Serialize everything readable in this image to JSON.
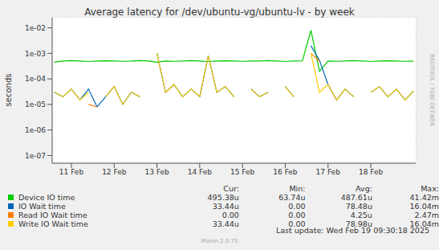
{
  "chart_data": {
    "type": "line",
    "title": "Average latency for /dev/ubuntu-vg/ubuntu-lv - by week",
    "y_label": "seconds",
    "side_text": "RRDTOOL / TOBI OETIKER",
    "footer": "Last update: Wed Feb 19 09:30:18 2025",
    "credit": "Munin 2.0.75",
    "log": "y",
    "grid": true,
    "xlim": [
      10.55,
      19.05
    ],
    "xticks": [
      {
        "value": 11,
        "label": "11 Feb"
      },
      {
        "value": 12,
        "label": "12 Feb"
      },
      {
        "value": 13,
        "label": "13 Feb"
      },
      {
        "value": 14,
        "label": "14 Feb"
      },
      {
        "value": 15,
        "label": "15 Feb"
      },
      {
        "value": 16,
        "label": "16 Feb"
      },
      {
        "value": 17,
        "label": "17 Feb"
      },
      {
        "value": 18,
        "label": "18 Feb"
      }
    ],
    "ylim": [
      5e-08,
      0.025
    ],
    "yticks": [
      {
        "value": 1e-07,
        "label": "1e-07"
      },
      {
        "value": 1e-06,
        "label": "1e-06"
      },
      {
        "value": 1e-05,
        "label": "1e-05"
      },
      {
        "value": 0.0001,
        "label": "1e-04"
      },
      {
        "value": 0.001,
        "label": "1e-03"
      },
      {
        "value": 0.01,
        "label": "1e-02"
      }
    ],
    "summary_headers": [
      "Cur:",
      "Min:",
      "Avg:",
      "Max:"
    ],
    "x": [
      10.6,
      10.8,
      11.0,
      11.2,
      11.4,
      11.6,
      11.8,
      12.0,
      12.2,
      12.4,
      12.6,
      12.8,
      13.0,
      13.2,
      13.4,
      13.6,
      13.8,
      14.0,
      14.2,
      14.4,
      14.6,
      14.8,
      15.0,
      15.2,
      15.4,
      15.6,
      15.8,
      16.0,
      16.2,
      16.4,
      16.6,
      16.8,
      17.0,
      17.2,
      17.4,
      17.6,
      17.8,
      18.0,
      18.2,
      18.4,
      18.6,
      18.8,
      19.0
    ],
    "series": [
      {
        "name": "Device IO time",
        "color": "#00cc00",
        "summary": [
          "495.38u",
          "63.74u",
          "487.61u",
          "41.42m"
        ],
        "values": [
          0.00045,
          0.0005,
          0.00052,
          0.0005,
          0.00048,
          0.0005,
          0.00051,
          0.0005,
          0.00049,
          0.0005,
          0.00052,
          0.0005,
          0.00045,
          0.0005,
          0.00049,
          0.0005,
          0.00052,
          0.0005,
          0.00048,
          0.0005,
          0.00051,
          0.0005,
          0.00049,
          0.0005,
          0.0005,
          0.00052,
          0.0005,
          0.00048,
          0.0005,
          0.00051,
          0.008,
          0.0002,
          0.0005,
          0.00049,
          0.0005,
          0.00052,
          0.0005,
          0.00048,
          0.0005,
          0.00051,
          0.0005,
          0.00049,
          0.00049538
        ]
      },
      {
        "name": "IO Wait time",
        "color": "#0066b3",
        "summary": [
          "33.44u",
          "0.00",
          "78.48u",
          "16.04m"
        ],
        "values": [
          3e-05,
          2e-05,
          4e-05,
          1.5e-05,
          4e-05,
          8e-06,
          2e-05,
          5e-05,
          1e-05,
          3e-05,
          2e-05,
          null,
          0.001,
          3e-05,
          6e-05,
          2e-05,
          4e-05,
          2e-05,
          0.0008,
          3e-05,
          5e-05,
          2e-05,
          null,
          4e-05,
          2e-05,
          3e-05,
          null,
          5e-05,
          2e-05,
          null,
          0.002,
          0.00053,
          6e-05,
          1.5e-05,
          4e-05,
          2e-05,
          null,
          3e-05,
          5e-05,
          2e-05,
          4e-05,
          1.5e-05,
          3.344e-05
        ]
      },
      {
        "name": "Read IO Wait time",
        "color": "#ff8000",
        "summary": [
          "0.00",
          "0.00",
          "4.25u",
          "2.47m"
        ],
        "values": [
          null,
          null,
          null,
          null,
          1e-05,
          8e-06,
          null,
          null,
          null,
          null,
          null,
          null,
          null,
          null,
          null,
          null,
          null,
          null,
          null,
          null,
          null,
          null,
          null,
          null,
          null,
          null,
          null,
          null,
          null,
          null,
          0.001,
          0.0005,
          null,
          null,
          null,
          null,
          null,
          null,
          null,
          null,
          null,
          null,
          null
        ]
      },
      {
        "name": "Write IO Wait time",
        "color": "#ffcc00",
        "summary": [
          "33.44u",
          "0.00",
          "78.98u",
          "16.04m"
        ],
        "values": [
          3e-05,
          2e-05,
          4e-05,
          1.5e-05,
          3e-05,
          null,
          2e-05,
          5e-05,
          1e-05,
          3e-05,
          2e-05,
          null,
          0.001,
          3e-05,
          6e-05,
          2e-05,
          4e-05,
          2e-05,
          0.0008,
          3e-05,
          5e-05,
          2e-05,
          null,
          4e-05,
          2e-05,
          3e-05,
          null,
          5e-05,
          2e-05,
          null,
          0.001,
          3e-05,
          6e-05,
          1.5e-05,
          4e-05,
          2e-05,
          null,
          3e-05,
          5e-05,
          2e-05,
          4e-05,
          1.5e-05,
          3.344e-05
        ]
      }
    ]
  }
}
